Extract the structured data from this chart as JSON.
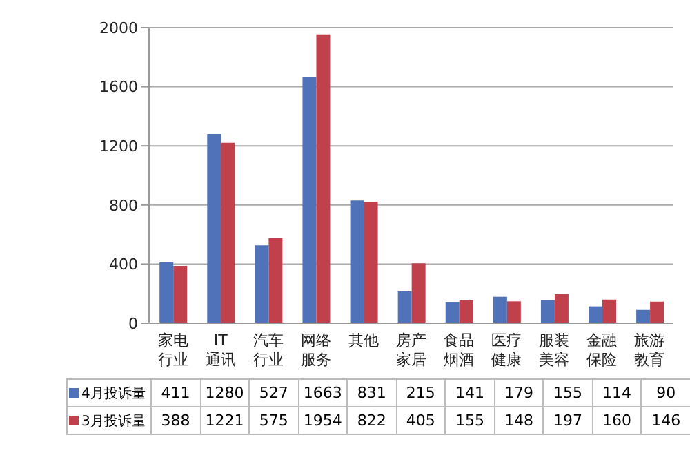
{
  "chart_data": {
    "type": "bar",
    "categories": [
      "家电行业",
      "IT通讯",
      "汽车行业",
      "网络服务",
      "其他",
      "房产家居",
      "食品烟酒",
      "医疗健康",
      "服装美容",
      "金融保险",
      "旅游教育"
    ],
    "series": [
      {
        "name": "4月投诉量",
        "color": "#4f72b8",
        "values": [
          411,
          1280,
          527,
          1663,
          831,
          215,
          141,
          179,
          155,
          114,
          90
        ]
      },
      {
        "name": "3月投诉量",
        "color": "#c0404c",
        "values": [
          388,
          1221,
          575,
          1954,
          822,
          405,
          155,
          148,
          197,
          160,
          146
        ]
      }
    ],
    "ylim": [
      0,
      2000
    ],
    "yticks": [
      0,
      400,
      800,
      1200,
      1600,
      2000
    ],
    "grid": "y",
    "legend": "bottom",
    "data_labels": true
  }
}
